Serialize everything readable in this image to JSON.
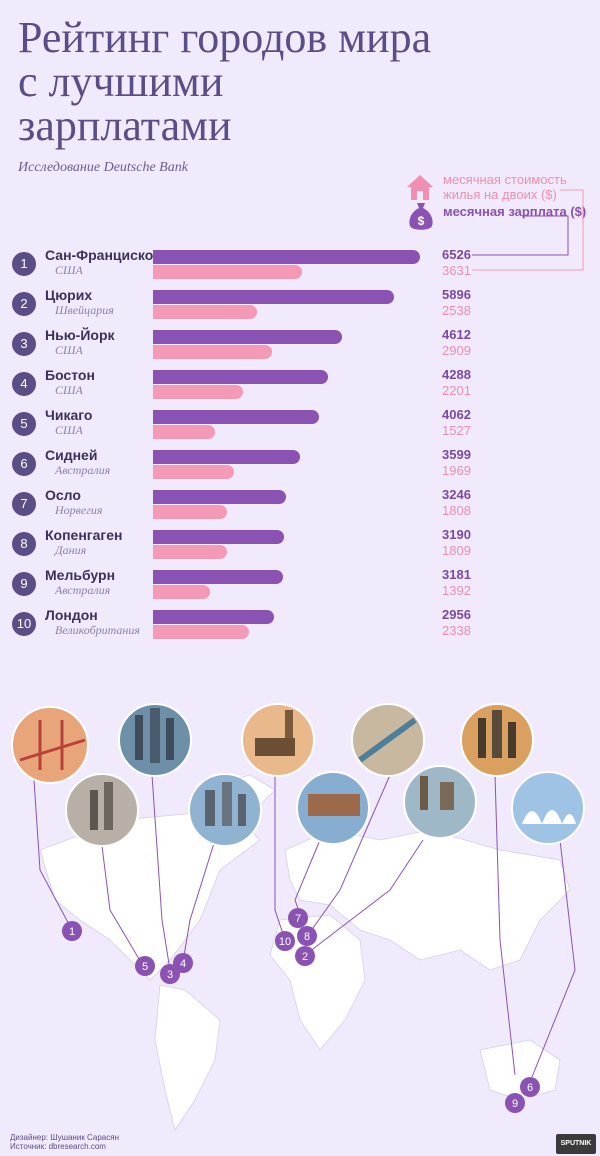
{
  "header": {
    "title": "Рейтинг городов мира с лучшими зарплатами",
    "subtitle": "Исследование Deutsche Bank"
  },
  "legend": {
    "rent_label": "месячная стоимость жилья на двоих ($)",
    "salary_label": "месячная зарплата ($)",
    "rent_icon": "house-icon",
    "salary_icon": "money-bag-icon",
    "salary_color": "#8a52b3",
    "rent_color": "#f49ab6"
  },
  "chart_data": {
    "type": "bar",
    "title": "Рейтинг городов мира с лучшими зарплатами",
    "subtitle": "Исследование Deutsche Bank",
    "categories": [
      "Сан-Франциско",
      "Цюрих",
      "Нью-Йорк",
      "Бостон",
      "Чикаго",
      "Сидней",
      "Осло",
      "Копенгаген",
      "Мельбурн",
      "Лондон"
    ],
    "ranks": [
      "1",
      "2",
      "3",
      "4",
      "5",
      "6",
      "7",
      "8",
      "9",
      "10"
    ],
    "countries": [
      "США",
      "Швейцария",
      "США",
      "США",
      "США",
      "Австралия",
      "Норвегия",
      "Дания",
      "Австралия",
      "Великобритания"
    ],
    "series": [
      {
        "name": "месячная зарплата ($)",
        "values": [
          6526,
          5896,
          4612,
          4288,
          4062,
          3599,
          3246,
          3190,
          3181,
          2956
        ]
      },
      {
        "name": "месячная стоимость жилья на двоих ($)",
        "values": [
          3631,
          2538,
          2909,
          2201,
          1527,
          1969,
          1808,
          1809,
          1392,
          2338
        ]
      }
    ],
    "xlim": [
      0,
      6526
    ]
  },
  "map": {
    "markers": [
      "1",
      "5",
      "3",
      "4",
      "7",
      "10",
      "8",
      "2",
      "9",
      "6"
    ]
  },
  "credits": {
    "designer": "Дизайнер: Шушаник Сарасян",
    "source": "Источник: dbresearch.com"
  },
  "brand": {
    "logo_text": "SPUTNIK"
  }
}
